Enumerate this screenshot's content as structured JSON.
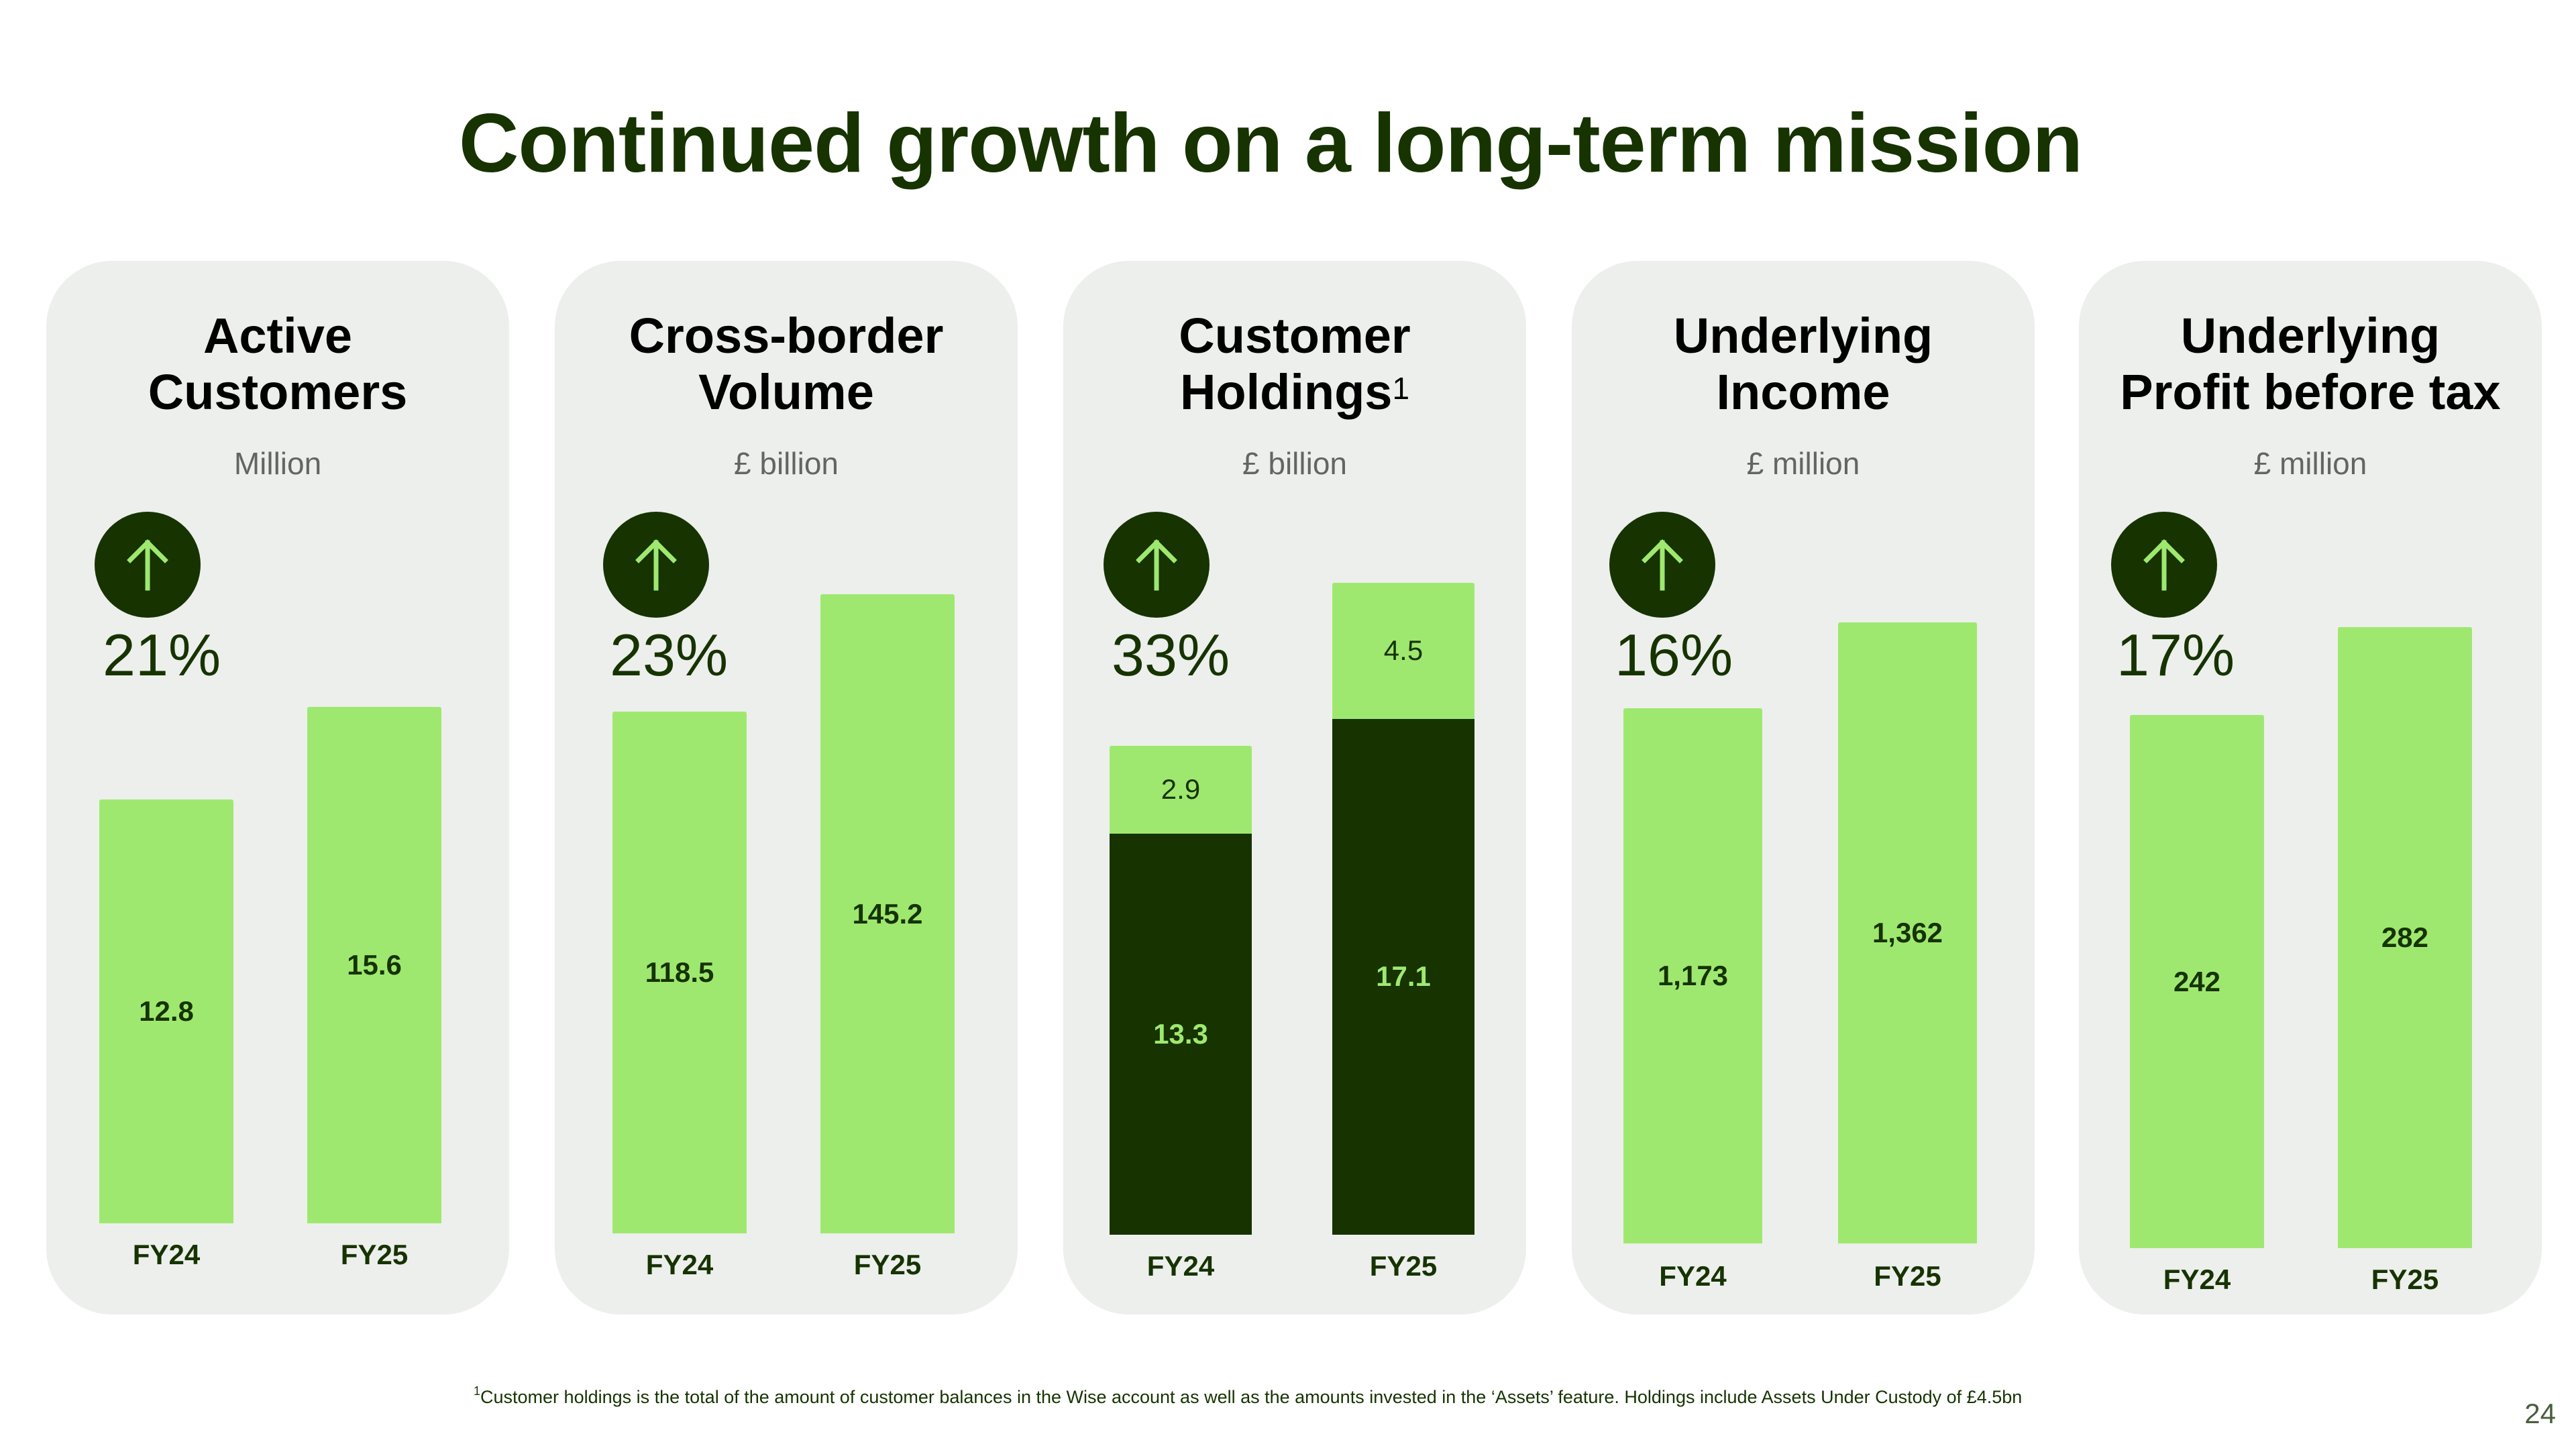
{
  "title": "Continued growth on a long-term mission",
  "colors": {
    "dark_green": "#163300",
    "bright_green": "#9FE870",
    "card_bg": "#EDEFEC",
    "unit_grey": "#646464"
  },
  "cards": [
    {
      "heading_line1": "Active",
      "heading_line2": "Customers",
      "heading_sup": "",
      "unit": "Million",
      "growth_icon": "arrow-up-icon",
      "growth": "21%"
    },
    {
      "heading_line1": "Cross-border",
      "heading_line2": "Volume",
      "heading_sup": "",
      "unit": "£ billion",
      "growth_icon": "arrow-up-icon",
      "growth": "23%"
    },
    {
      "heading_line1": "Customer",
      "heading_line2": "Holdings",
      "heading_sup": "1",
      "unit": "£ billion",
      "growth_icon": "arrow-up-icon",
      "growth": "33%"
    },
    {
      "heading_line1": "Underlying",
      "heading_line2": "Income",
      "heading_sup": "",
      "unit": "£ million",
      "growth_icon": "arrow-up-icon",
      "growth": "16%"
    },
    {
      "heading_line1": "Underlying",
      "heading_line2": "Profit before tax",
      "heading_sup": "",
      "unit": "£ million",
      "growth_icon": "arrow-up-icon",
      "growth": "17%"
    }
  ],
  "chart_data": [
    {
      "type": "bar",
      "title": "Active Customers",
      "ylabel": "Million",
      "categories": [
        "FY24",
        "FY25"
      ],
      "values": [
        12.8,
        15.6
      ],
      "labels": [
        "12.8",
        "15.6"
      ],
      "growth_pct": 21
    },
    {
      "type": "bar",
      "title": "Cross-border Volume",
      "ylabel": "£ billion",
      "categories": [
        "FY24",
        "FY25"
      ],
      "values": [
        118.5,
        145.2
      ],
      "labels": [
        "118.5",
        "145.2"
      ],
      "growth_pct": 23
    },
    {
      "type": "bar",
      "stacked": true,
      "title": "Customer Holdings",
      "ylabel": "£ billion",
      "categories": [
        "FY24",
        "FY25"
      ],
      "series": [
        {
          "name": "Customer balances",
          "color": "#163300",
          "values": [
            13.3,
            17.1
          ],
          "labels": [
            "13.3",
            "17.1"
          ]
        },
        {
          "name": "Assets",
          "color": "#9FE870",
          "values": [
            2.9,
            4.5
          ],
          "labels": [
            "2.9",
            "4.5"
          ]
        }
      ],
      "growth_pct": 33
    },
    {
      "type": "bar",
      "title": "Underlying Income",
      "ylabel": "£ million",
      "categories": [
        "FY24",
        "FY25"
      ],
      "values": [
        1173,
        1362
      ],
      "labels": [
        "1,173",
        "1,362"
      ],
      "growth_pct": 16
    },
    {
      "type": "bar",
      "title": "Underlying Profit before tax",
      "ylabel": "£ million",
      "categories": [
        "FY24",
        "FY25"
      ],
      "values": [
        242,
        282
      ],
      "labels": [
        "242",
        "282"
      ],
      "growth_pct": 17
    }
  ],
  "footnote": {
    "marker": "1",
    "text": "Customer holdings is the total of the amount of customer balances in the Wise account as well as the amounts invested in the ‘Assets’ feature. Holdings include Assets Under Custody of £4.5bn"
  },
  "page_number": "24"
}
